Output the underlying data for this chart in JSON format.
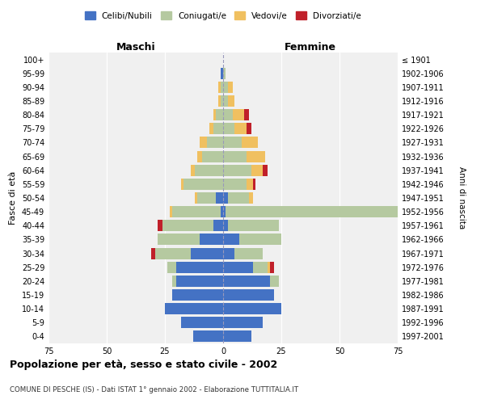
{
  "age_groups": [
    "0-4",
    "5-9",
    "10-14",
    "15-19",
    "20-24",
    "25-29",
    "30-34",
    "35-39",
    "40-44",
    "45-49",
    "50-54",
    "55-59",
    "60-64",
    "65-69",
    "70-74",
    "75-79",
    "80-84",
    "85-89",
    "90-94",
    "95-99",
    "100+"
  ],
  "birth_years": [
    "1997-2001",
    "1992-1996",
    "1987-1991",
    "1982-1986",
    "1977-1981",
    "1972-1976",
    "1967-1971",
    "1962-1966",
    "1957-1961",
    "1952-1956",
    "1947-1951",
    "1942-1946",
    "1937-1941",
    "1932-1936",
    "1927-1931",
    "1922-1926",
    "1917-1921",
    "1912-1916",
    "1907-1911",
    "1902-1906",
    "≤ 1901"
  ],
  "maschi": {
    "celibi": [
      13,
      18,
      25,
      22,
      20,
      20,
      14,
      10,
      4,
      1,
      3,
      0,
      0,
      0,
      0,
      0,
      0,
      0,
      0,
      1,
      0
    ],
    "coniugati": [
      0,
      0,
      0,
      0,
      2,
      4,
      15,
      18,
      22,
      21,
      8,
      17,
      12,
      9,
      7,
      4,
      3,
      1,
      1,
      0,
      0
    ],
    "vedovi": [
      0,
      0,
      0,
      0,
      0,
      0,
      0,
      0,
      0,
      1,
      1,
      1,
      2,
      2,
      3,
      2,
      1,
      1,
      1,
      0,
      0
    ],
    "divorziati": [
      0,
      0,
      0,
      0,
      0,
      0,
      2,
      0,
      2,
      0,
      0,
      0,
      0,
      0,
      0,
      0,
      0,
      0,
      0,
      0,
      0
    ]
  },
  "femmine": {
    "nubili": [
      12,
      17,
      25,
      22,
      20,
      13,
      5,
      7,
      2,
      1,
      2,
      0,
      0,
      0,
      0,
      0,
      0,
      0,
      0,
      0,
      0
    ],
    "coniugate": [
      0,
      0,
      0,
      0,
      4,
      6,
      12,
      18,
      22,
      74,
      9,
      10,
      12,
      10,
      8,
      5,
      4,
      2,
      2,
      1,
      0
    ],
    "vedove": [
      0,
      0,
      0,
      0,
      0,
      1,
      0,
      0,
      0,
      1,
      2,
      3,
      5,
      8,
      7,
      5,
      5,
      3,
      2,
      0,
      0
    ],
    "divorziate": [
      0,
      0,
      0,
      0,
      0,
      2,
      0,
      0,
      0,
      0,
      0,
      1,
      2,
      0,
      0,
      2,
      2,
      0,
      0,
      0,
      0
    ]
  },
  "colors": {
    "celibi_nubili": "#4472c4",
    "coniugati": "#b5c9a0",
    "vedovi": "#f0c060",
    "divorziati": "#c0202a"
  },
  "xlim": 75,
  "title": "Popolazione per età, sesso e stato civile - 2002",
  "subtitle": "COMUNE DI PESCHE (IS) - Dati ISTAT 1° gennaio 2002 - Elaborazione TUTTITALIA.IT",
  "ylabel_left": "Fasce di età",
  "ylabel_right": "Anni di nascita",
  "xlabel_left": "Maschi",
  "xlabel_right": "Femmine",
  "bg_color": "#f0f0f0",
  "legend_labels": [
    "Celibi/Nubili",
    "Coniugati/e",
    "Vedovi/e",
    "Divorziati/e"
  ]
}
